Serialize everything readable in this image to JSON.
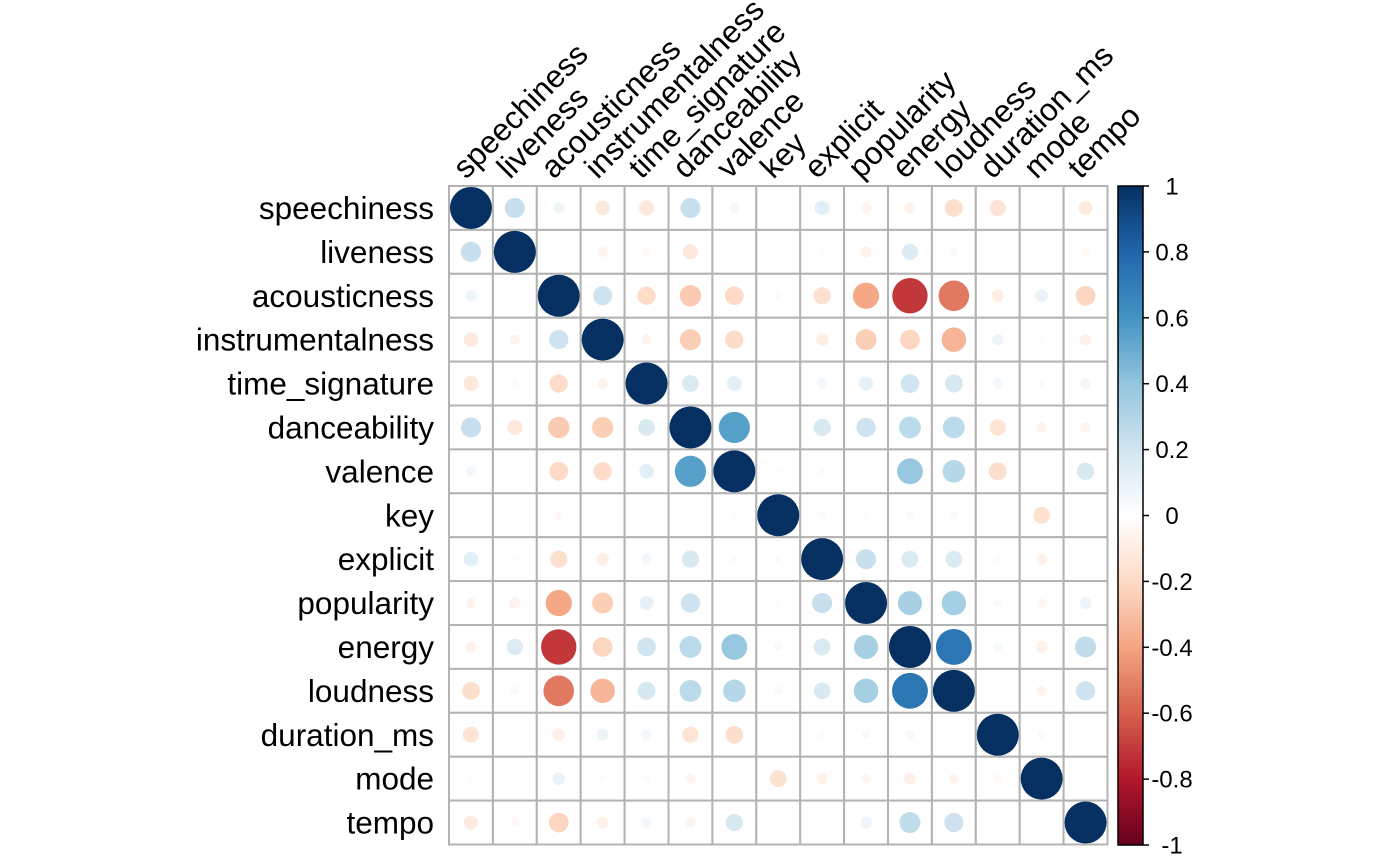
{
  "chart_data": {
    "type": "heatmap",
    "subtype": "correlation-matrix-circles",
    "title": "",
    "xlabel": "",
    "ylabel": "",
    "variables": [
      "speechiness",
      "liveness",
      "acousticness",
      "instrumentalness",
      "time_signature",
      "danceability",
      "valence",
      "key",
      "explicit",
      "popularity",
      "energy",
      "loudness",
      "duration_ms",
      "mode",
      "tempo"
    ],
    "matrix": [
      [
        1,
        0.23,
        0.07,
        -0.12,
        -0.13,
        0.23,
        0.06,
        0.01,
        0.12,
        -0.06,
        -0.07,
        -0.18,
        -0.15,
        -0.02,
        -0.11
      ],
      [
        0.23,
        1,
        0.01,
        -0.06,
        -0.04,
        -0.13,
        0.01,
        -0.01,
        -0.02,
        -0.07,
        0.15,
        0.04,
        0.01,
        -0.01,
        -0.04
      ],
      [
        0.07,
        0.01,
        1,
        0.21,
        -0.19,
        -0.26,
        -0.2,
        -0.04,
        -0.17,
        -0.39,
        -0.71,
        -0.53,
        -0.09,
        0.09,
        -0.22
      ],
      [
        -0.12,
        -0.06,
        0.21,
        1,
        -0.06,
        -0.25,
        -0.19,
        -0.01,
        -0.09,
        -0.25,
        -0.22,
        -0.34,
        0.08,
        -0.02,
        -0.08
      ],
      [
        -0.13,
        -0.04,
        -0.19,
        -0.06,
        1,
        0.16,
        0.12,
        0.01,
        0.06,
        0.11,
        0.2,
        0.18,
        0.06,
        -0.03,
        0.06
      ],
      [
        0.23,
        -0.13,
        -0.26,
        -0.25,
        0.16,
        1,
        0.55,
        0.01,
        0.17,
        0.21,
        0.27,
        0.27,
        -0.15,
        -0.06,
        -0.06
      ],
      [
        0.06,
        0.01,
        -0.2,
        -0.19,
        0.12,
        0.55,
        1,
        0.02,
        -0.03,
        0.01,
        0.38,
        0.29,
        -0.18,
        0.01,
        0.17
      ],
      [
        0.01,
        -0.01,
        -0.04,
        -0.01,
        0.01,
        0.01,
        0.02,
        1,
        0.03,
        0.02,
        0.04,
        0.04,
        0.01,
        -0.16,
        -0.01
      ],
      [
        0.12,
        -0.02,
        -0.17,
        -0.09,
        0.06,
        0.17,
        -0.03,
        0.03,
        1,
        0.23,
        0.16,
        0.16,
        -0.03,
        -0.07,
        0.01
      ],
      [
        -0.06,
        -0.07,
        -0.39,
        -0.25,
        0.11,
        0.21,
        0.01,
        0.02,
        0.23,
        1,
        0.33,
        0.34,
        0.04,
        -0.05,
        0.08
      ],
      [
        -0.07,
        0.15,
        -0.71,
        -0.22,
        0.2,
        0.27,
        0.38,
        0.04,
        0.16,
        0.33,
        1,
        0.73,
        0.05,
        -0.08,
        0.25
      ],
      [
        -0.18,
        0.04,
        -0.53,
        -0.34,
        0.18,
        0.27,
        0.29,
        0.04,
        0.16,
        0.34,
        0.73,
        1,
        -0.01,
        -0.06,
        0.21
      ],
      [
        -0.15,
        0.01,
        -0.09,
        0.08,
        0.06,
        -0.15,
        -0.18,
        0.01,
        -0.03,
        0.04,
        0.05,
        -0.01,
        1,
        -0.04,
        -0.01
      ],
      [
        -0.02,
        -0.01,
        0.09,
        -0.02,
        -0.03,
        -0.06,
        0.01,
        -0.16,
        -0.07,
        -0.05,
        -0.08,
        -0.06,
        -0.04,
        1,
        0.01
      ],
      [
        -0.11,
        -0.04,
        -0.22,
        -0.08,
        0.06,
        -0.06,
        0.17,
        -0.01,
        0.01,
        0.08,
        0.25,
        0.21,
        -0.01,
        0.01,
        1
      ]
    ],
    "value_range": [
      -1,
      1
    ],
    "encoding": "circle area and color proportional to correlation",
    "grid": true,
    "colorbar": {
      "placement": "right",
      "ticks": [
        "1",
        "0.8",
        "0.6",
        "0.4",
        "0.2",
        "0",
        "-0.2",
        "-0.4",
        "-0.6",
        "-0.8",
        "-1"
      ]
    },
    "palette": [
      "#67001F",
      "#B2182B",
      "#D6604D",
      "#F4A582",
      "#FDDBC7",
      "#FFFFFF",
      "#D1E5F0",
      "#92C5DE",
      "#4393C3",
      "#2166AC",
      "#053061"
    ],
    "grid_color": "#B3B3B3"
  }
}
